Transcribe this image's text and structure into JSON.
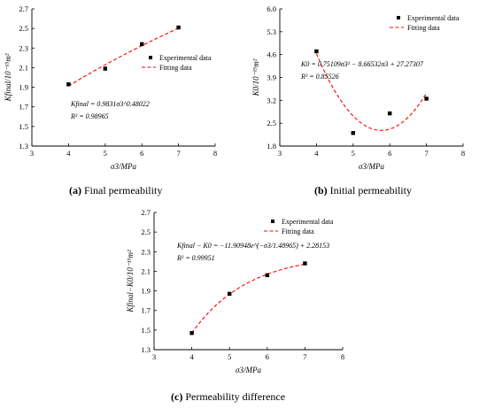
{
  "chart_data": [
    {
      "type": "scatter",
      "panel": "a",
      "caption_letter": "(a)",
      "caption_text": "Final permeability",
      "xlabel": "σ3/MPa",
      "ylabel": "Kfinal/10⁻¹⁵m²",
      "xlim": [
        3,
        8
      ],
      "ylim": [
        1.3,
        2.7
      ],
      "xticks": [
        3,
        4,
        5,
        6,
        7,
        8
      ],
      "yticks": [
        1.3,
        1.5,
        1.7,
        1.9,
        2.1,
        2.3,
        2.5,
        2.7
      ],
      "series": [
        {
          "name": "Experimental data",
          "kind": "points",
          "x": [
            4,
            5,
            6,
            7
          ],
          "y": [
            1.93,
            2.09,
            2.34,
            2.51
          ]
        },
        {
          "name": "Fitting data",
          "kind": "fit",
          "formula": "power",
          "a": 0.9831,
          "b": 0.48022
        }
      ],
      "equation_lines": [
        "Kfinal = 0.9831σ3^0.48022",
        "R² = 0.98965"
      ],
      "legend_placement": "inside-right",
      "grid": false
    },
    {
      "type": "scatter",
      "panel": "b",
      "caption_letter": "(b)",
      "caption_text": "Initial permeability",
      "xlabel": "σ3/MPa",
      "ylabel": "K0/10⁻¹⁵m²",
      "xlim": [
        3,
        8
      ],
      "ylim": [
        1.8,
        6.0
      ],
      "xticks": [
        3,
        4,
        5,
        6,
        7,
        8
      ],
      "yticks": [
        1.8,
        2.5,
        3.2,
        3.9,
        4.6,
        5.3,
        6.0
      ],
      "series": [
        {
          "name": "Experimental data",
          "kind": "points",
          "x": [
            4,
            5,
            6,
            7
          ],
          "y": [
            4.7,
            2.2,
            2.8,
            3.25
          ]
        },
        {
          "name": "Fitting data",
          "kind": "fit",
          "formula": "quadratic",
          "a": 0.75109,
          "b": -8.66532,
          "c": 27.27307
        }
      ],
      "equation_lines": [
        "K0 = 0.75109σ3² − 8.66532σ3 + 27.27307",
        "R² = 0.85526"
      ],
      "legend_placement": "top-right",
      "grid": false
    },
    {
      "type": "scatter",
      "panel": "c",
      "caption_letter": "(c)",
      "caption_text": "Permeability difference",
      "xlabel": "σ3/MPa",
      "ylabel": "Kfinal−K0/10⁻¹⁵m²",
      "xlim": [
        3,
        8
      ],
      "ylim": [
        1.3,
        2.7
      ],
      "xticks": [
        3,
        4,
        5,
        6,
        7,
        8
      ],
      "yticks": [
        1.3,
        1.5,
        1.7,
        1.9,
        2.1,
        2.3,
        2.5,
        2.7
      ],
      "series": [
        {
          "name": "Experimental data",
          "kind": "points",
          "x": [
            4,
            5,
            6,
            7
          ],
          "y": [
            1.47,
            1.87,
            2.06,
            2.18
          ]
        },
        {
          "name": "Fitting data",
          "kind": "fit",
          "formula": "exponential",
          "a": -11.90948,
          "t": 1.48965,
          "c": 2.28153
        }
      ],
      "equation_lines": [
        "Kfinal − K0 = −11.90948e^(−σ3/1.48965) + 2.28153",
        "R² = 0.99951"
      ],
      "legend_placement": "top-right",
      "grid": false
    }
  ],
  "colors": {
    "points": "#000000",
    "fit": "#ff0000",
    "axes": "#000000"
  }
}
